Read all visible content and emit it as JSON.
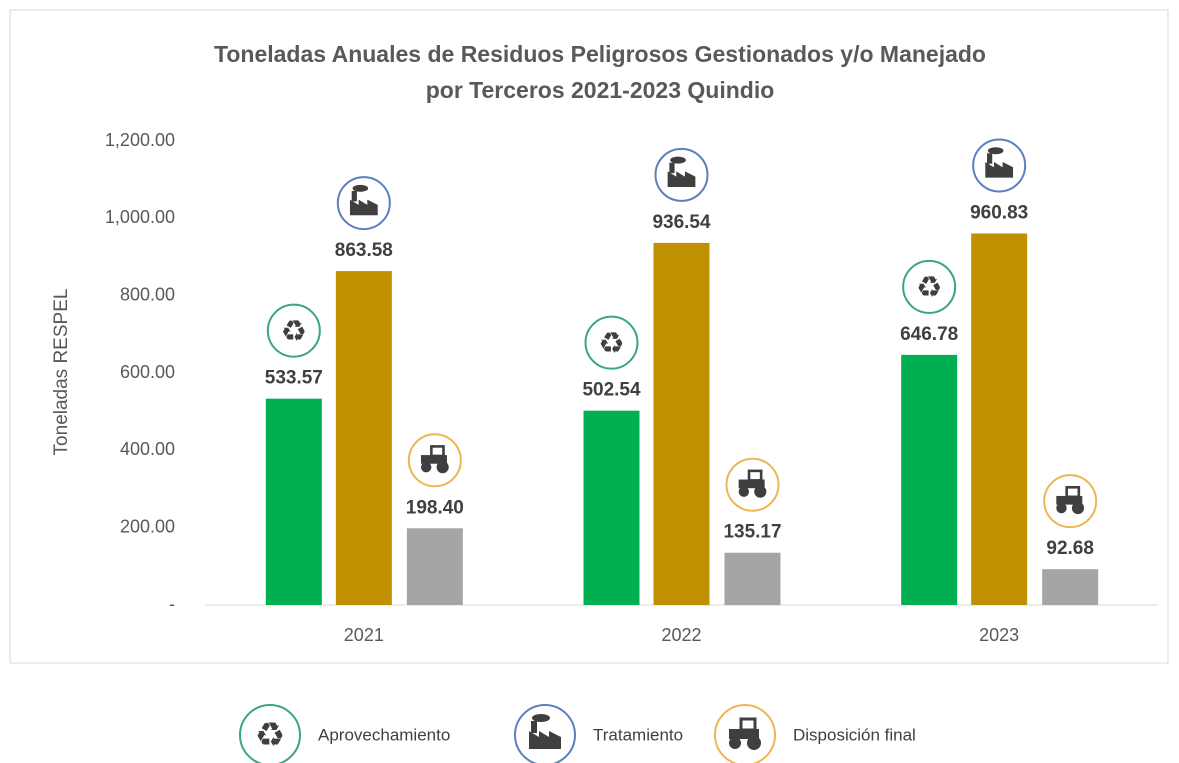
{
  "chart_data": {
    "type": "bar",
    "title": [
      "Toneladas Anuales de Residuos Peligrosos Gestionados y/o Manejado",
      "por Terceros 2021-2023 Quindio"
    ],
    "y_label": "Toneladas  RESPEL",
    "categories": [
      "2021",
      "2022",
      "2023"
    ],
    "series": [
      {
        "name": "Aprovechamiento",
        "color": "#00b050",
        "values": [
          533.57,
          502.54,
          646.78
        ],
        "value_labels": [
          "533.57",
          "502.54",
          "646.78"
        ]
      },
      {
        "name": "Tratamiento",
        "color": "#bf9000",
        "values": [
          863.58,
          936.54,
          960.83
        ],
        "value_labels": [
          "863.58",
          "936.54",
          "960.83"
        ]
      },
      {
        "name": "Disposición final",
        "color": "#a5a5a5",
        "values": [
          198.4,
          135.17,
          92.68
        ],
        "value_labels": [
          "198.40",
          "135.17",
          "92.68"
        ]
      }
    ],
    "ylim": [
      0,
      1200
    ],
    "yticks": [
      {
        "value": 0,
        "label": "-"
      },
      {
        "value": 200,
        "label": "200.00"
      },
      {
        "value": 400,
        "label": "400.00"
      },
      {
        "value": 600,
        "label": "600.00"
      },
      {
        "value": 800,
        "label": "800.00"
      },
      {
        "value": 1000,
        "label": "1,000.00"
      },
      {
        "value": 1200,
        "label": "1,200.00"
      }
    ],
    "grid": false
  }
}
